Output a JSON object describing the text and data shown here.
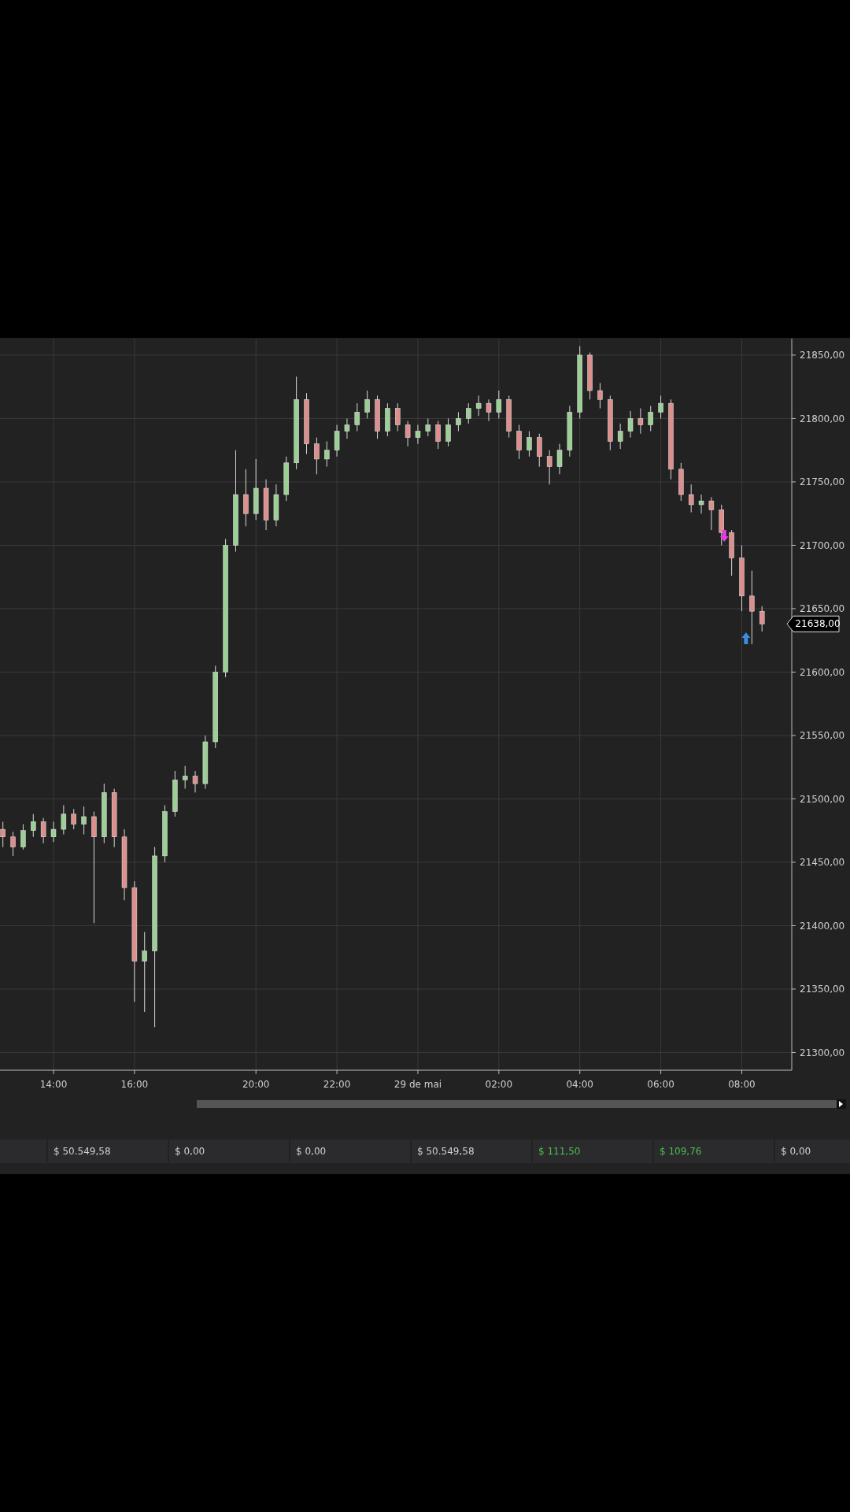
{
  "chart_data": {
    "type": "candlestick",
    "categories": [
      null,
      null,
      null,
      null,
      null,
      "14:00",
      null,
      null,
      null,
      null,
      null,
      null,
      null,
      "16:00",
      null,
      null,
      null,
      null,
      null,
      null,
      null,
      null,
      null,
      null,
      null,
      "20:00",
      null,
      null,
      null,
      null,
      null,
      null,
      null,
      "22:00",
      null,
      null,
      null,
      null,
      null,
      null,
      null,
      "29 de mai",
      null,
      null,
      null,
      null,
      null,
      null,
      null,
      "02:00",
      null,
      null,
      null,
      null,
      null,
      null,
      null,
      "04:00",
      null,
      null,
      null,
      null,
      null,
      null,
      null,
      "06:00",
      null,
      null,
      null,
      null,
      null,
      null,
      null,
      "08:00",
      null,
      null
    ],
    "ohlc": [
      [
        21476,
        21482,
        21462,
        21470
      ],
      [
        21470,
        21474,
        21455,
        21462
      ],
      [
        21462,
        21480,
        21460,
        21475
      ],
      [
        21475,
        21488,
        21470,
        21482
      ],
      [
        21482,
        21485,
        21465,
        21470
      ],
      [
        21470,
        21482,
        21466,
        21476
      ],
      [
        21476,
        21495,
        21472,
        21488
      ],
      [
        21488,
        21492,
        21476,
        21480
      ],
      [
        21480,
        21494,
        21472,
        21486
      ],
      [
        21486,
        21490,
        21402,
        21470
      ],
      [
        21470,
        21512,
        21465,
        21505
      ],
      [
        21505,
        21508,
        21462,
        21470
      ],
      [
        21470,
        21476,
        21420,
        21430
      ],
      [
        21430,
        21435,
        21340,
        21372
      ],
      [
        21372,
        21395,
        21332,
        21380
      ],
      [
        21380,
        21462,
        21320,
        21455
      ],
      [
        21455,
        21495,
        21450,
        21490
      ],
      [
        21490,
        21522,
        21486,
        21515
      ],
      [
        21515,
        21526,
        21508,
        21518
      ],
      [
        21518,
        21522,
        21505,
        21512
      ],
      [
        21512,
        21550,
        21508,
        21545
      ],
      [
        21545,
        21605,
        21540,
        21600
      ],
      [
        21600,
        21705,
        21596,
        21700
      ],
      [
        21700,
        21775,
        21695,
        21740
      ],
      [
        21740,
        21760,
        21715,
        21725
      ],
      [
        21725,
        21768,
        21720,
        21745
      ],
      [
        21745,
        21752,
        21712,
        21720
      ],
      [
        21720,
        21748,
        21715,
        21740
      ],
      [
        21740,
        21770,
        21735,
        21765
      ],
      [
        21765,
        21833,
        21760,
        21815
      ],
      [
        21815,
        21820,
        21772,
        21780
      ],
      [
        21780,
        21785,
        21756,
        21768
      ],
      [
        21768,
        21782,
        21762,
        21775
      ],
      [
        21775,
        21795,
        21770,
        21790
      ],
      [
        21790,
        21800,
        21784,
        21795
      ],
      [
        21795,
        21812,
        21790,
        21805
      ],
      [
        21805,
        21822,
        21800,
        21815
      ],
      [
        21815,
        21818,
        21784,
        21790
      ],
      [
        21790,
        21812,
        21786,
        21808
      ],
      [
        21808,
        21812,
        21790,
        21795
      ],
      [
        21795,
        21798,
        21778,
        21785
      ],
      [
        21785,
        21795,
        21780,
        21790
      ],
      [
        21790,
        21800,
        21786,
        21795
      ],
      [
        21795,
        21798,
        21776,
        21782
      ],
      [
        21782,
        21800,
        21778,
        21795
      ],
      [
        21795,
        21805,
        21790,
        21800
      ],
      [
        21800,
        21812,
        21796,
        21808
      ],
      [
        21808,
        21818,
        21802,
        21812
      ],
      [
        21812,
        21815,
        21798,
        21805
      ],
      [
        21805,
        21822,
        21800,
        21815
      ],
      [
        21815,
        21818,
        21785,
        21790
      ],
      [
        21790,
        21795,
        21768,
        21775
      ],
      [
        21775,
        21790,
        21770,
        21785
      ],
      [
        21785,
        21788,
        21762,
        21770
      ],
      [
        21770,
        21775,
        21748,
        21762
      ],
      [
        21762,
        21780,
        21756,
        21775
      ],
      [
        21775,
        21810,
        21770,
        21805
      ],
      [
        21805,
        21857,
        21800,
        21850
      ],
      [
        21850,
        21852,
        21815,
        21822
      ],
      [
        21822,
        21828,
        21808,
        21815
      ],
      [
        21815,
        21818,
        21775,
        21782
      ],
      [
        21782,
        21796,
        21776,
        21790
      ],
      [
        21790,
        21806,
        21785,
        21800
      ],
      [
        21800,
        21808,
        21788,
        21795
      ],
      [
        21795,
        21810,
        21790,
        21805
      ],
      [
        21805,
        21818,
        21800,
        21812
      ],
      [
        21812,
        21815,
        21752,
        21760
      ],
      [
        21760,
        21765,
        21735,
        21740
      ],
      [
        21740,
        21748,
        21726,
        21732
      ],
      [
        21732,
        21740,
        21725,
        21735
      ],
      [
        21735,
        21738,
        21712,
        21728
      ],
      [
        21728,
        21732,
        21700,
        21710
      ],
      [
        21710,
        21712,
        21676,
        21690
      ],
      [
        21690,
        21700,
        21648,
        21660
      ],
      [
        21660,
        21680,
        21622,
        21648
      ],
      [
        21648,
        21652,
        21632,
        21638
      ]
    ],
    "ylim": [
      21286,
      21863
    ],
    "yticks": [
      {
        "value": 21300,
        "label": "21300,00"
      },
      {
        "value": 21350,
        "label": "21350,00"
      },
      {
        "value": 21400,
        "label": "21400,00"
      },
      {
        "value": 21450,
        "label": "21450,00"
      },
      {
        "value": 21500,
        "label": "21500,00"
      },
      {
        "value": 21550,
        "label": "21550,00"
      },
      {
        "value": 21600,
        "label": "21600,00"
      },
      {
        "value": 21650,
        "label": "21650,00"
      },
      {
        "value": 21700,
        "label": "21700,00"
      },
      {
        "value": 21750,
        "label": "21750,00"
      },
      {
        "value": 21800,
        "label": "21800,00"
      },
      {
        "value": 21850,
        "label": "21850,00"
      }
    ],
    "grid": true,
    "annotations": [
      "21638,00",
      "$ 50.549,58",
      "$ 0,00",
      "$ 0,00",
      "$ 50.549,58",
      "$ 111,50",
      "$ 109,76",
      "$ 0,00"
    ]
  }
}
